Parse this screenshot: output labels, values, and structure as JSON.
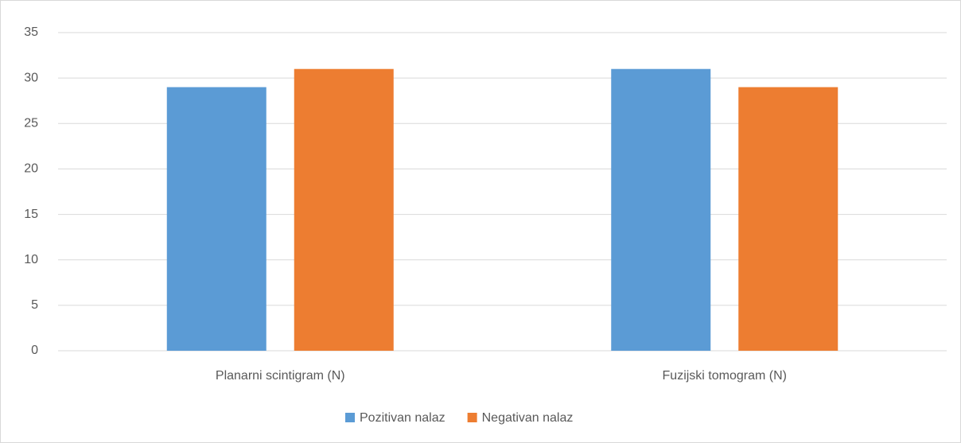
{
  "chart_data": {
    "type": "bar",
    "categories": [
      "Planarni scintigram (N)",
      "Fuzijski tomogram (N)"
    ],
    "series": [
      {
        "name": "Pozitivan nalaz",
        "color": "#5b9bd5",
        "values": [
          29,
          31
        ]
      },
      {
        "name": "Negativan nalaz",
        "color": "#ed7d31",
        "values": [
          31,
          29
        ]
      }
    ],
    "ylim": [
      0,
      35
    ],
    "yticks": [
      0,
      5,
      10,
      15,
      20,
      25,
      30,
      35
    ],
    "grid": true,
    "legend": "bottom"
  }
}
